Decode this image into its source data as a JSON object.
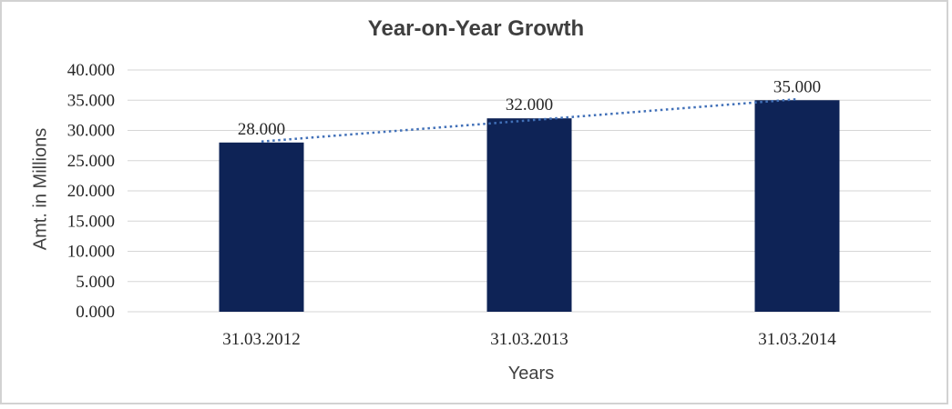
{
  "chart_data": {
    "type": "bar",
    "title": "Year-on-Year Growth",
    "categories": [
      "31.03.2012",
      "31.03.2013",
      "31.03.2014"
    ],
    "values": [
      28000,
      32000,
      35000
    ],
    "data_labels": [
      "28.000",
      "32.000",
      "35.000"
    ],
    "xlabel": "Years",
    "ylabel": "Amt. in Millions",
    "ylim": [
      0,
      40000
    ],
    "ytick_step": 5000,
    "ytick_labels": [
      "0.000",
      "5.000",
      "10.000",
      "15.000",
      "20.000",
      "25.000",
      "30.000",
      "35.000",
      "40.000"
    ],
    "grid": true,
    "legend": false,
    "trendline": {
      "type": "linear",
      "style": "dotted",
      "color": "#4170b8"
    },
    "colors": {
      "bar": "#0e2356",
      "gridline": "#d6d6d6",
      "title_text": "#3f3f3f",
      "label_text": "#262626",
      "axis_title_text": "#404040",
      "frame_border": "#d2d2d2"
    }
  }
}
